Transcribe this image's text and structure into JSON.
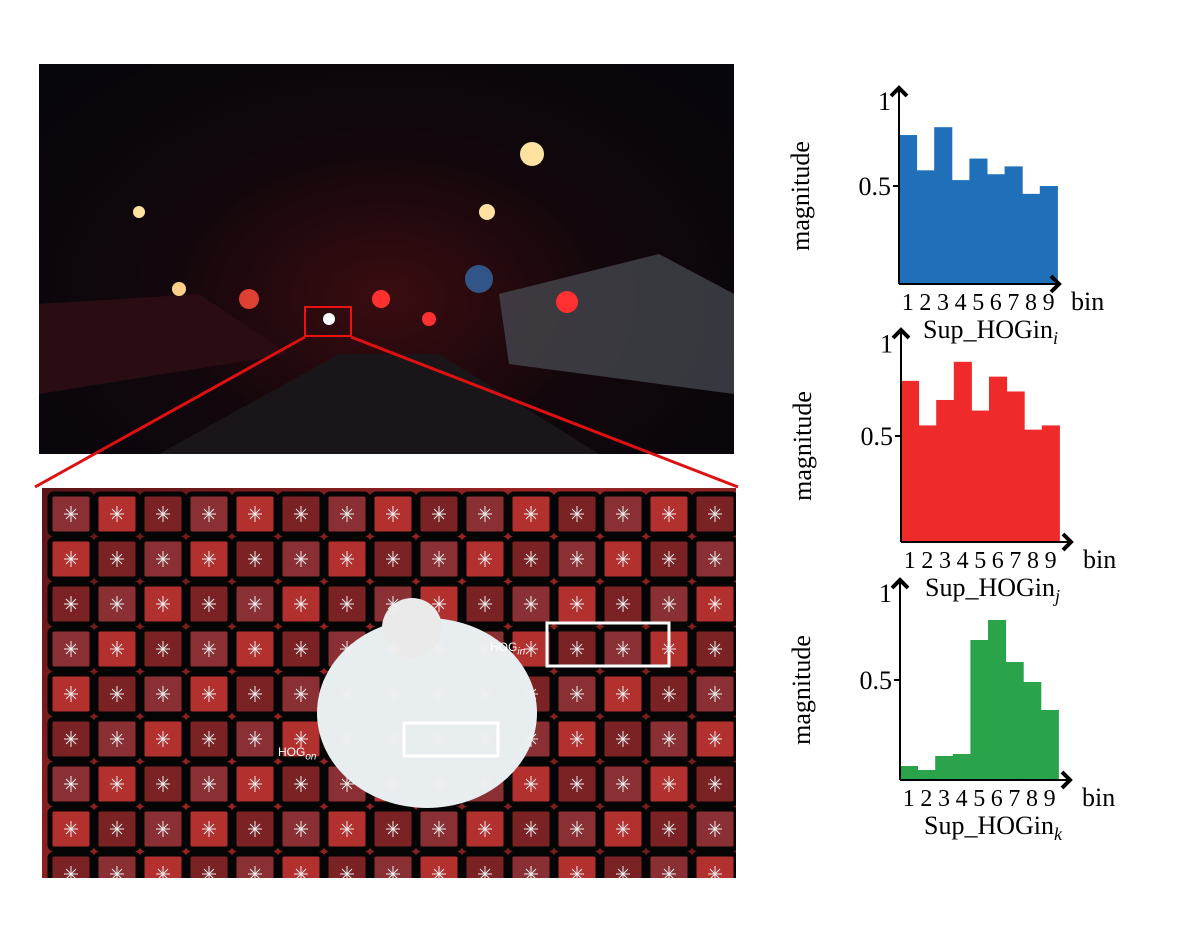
{
  "labels": {
    "hog_in": "HOG",
    "hog_in_sub": "in",
    "hog_on": "HOG",
    "hog_on_sub": "on"
  },
  "colors": {
    "blue": "#1f70b8",
    "red": "#ee2a2a",
    "green": "#2aa34a",
    "zoom_line": "#dd1111"
  },
  "chart_data": [
    {
      "type": "bar",
      "categories": [
        "1",
        "2",
        "3",
        "4",
        "5",
        "6",
        "7",
        "8",
        "9"
      ],
      "values": [
        0.76,
        0.58,
        0.8,
        0.53,
        0.64,
        0.56,
        0.6,
        0.46,
        0.5
      ],
      "xlabel": "bin",
      "ylabel": "magnitude",
      "yticks": [
        "0.5",
        "1"
      ],
      "ylim": [
        0,
        1
      ],
      "caption": "Sup_HOGin",
      "caption_sub": "i",
      "color": "#1f70b8"
    },
    {
      "type": "bar",
      "categories": [
        "1",
        "2",
        "3",
        "4",
        "5",
        "6",
        "7",
        "8",
        "9"
      ],
      "values": [
        0.76,
        0.55,
        0.67,
        0.85,
        0.62,
        0.78,
        0.71,
        0.53,
        0.55
      ],
      "xlabel": "bin",
      "ylabel": "magnitude",
      "yticks": [
        "0.5",
        "1"
      ],
      "ylim": [
        0,
        1
      ],
      "caption": "Sup_HOGin",
      "caption_sub": "j",
      "color": "#ee2a2a"
    },
    {
      "type": "bar",
      "categories": [
        "1",
        "2",
        "3",
        "4",
        "5",
        "6",
        "7",
        "8",
        "9"
      ],
      "values": [
        0.07,
        0.05,
        0.12,
        0.13,
        0.7,
        0.8,
        0.59,
        0.49,
        0.35
      ],
      "xlabel": "bin",
      "ylabel": "magnitude",
      "yticks": [
        "0.5",
        "1"
      ],
      "ylim": [
        0,
        1
      ],
      "caption": "Sup_HOGin",
      "caption_sub": "k",
      "color": "#2aa34a"
    }
  ]
}
